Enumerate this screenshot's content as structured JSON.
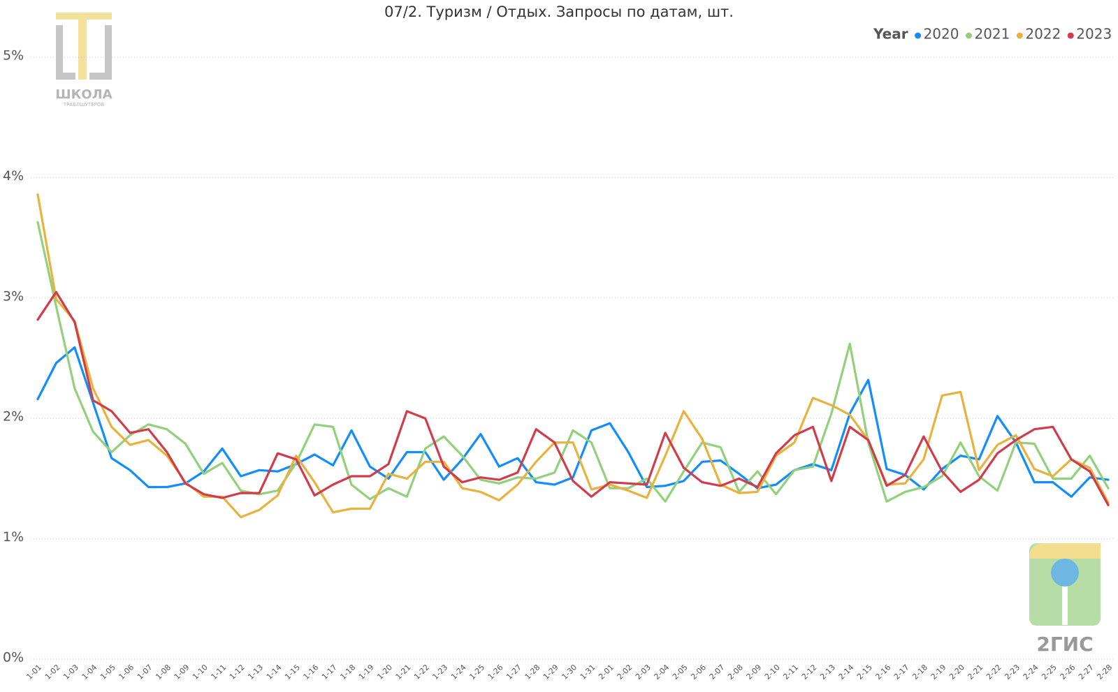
{
  "chart_data": {
    "type": "line",
    "title": "07/2. Туризм / Отдых. Запросы по датам, шт.",
    "legend_title": "Year",
    "legend_position": "top-right",
    "grid": true,
    "categories": [
      "1-01",
      "1-02",
      "1-03",
      "1-04",
      "1-05",
      "1-06",
      "1-07",
      "1-08",
      "1-09",
      "1-10",
      "1-11",
      "1-12",
      "1-13",
      "1-14",
      "1-15",
      "1-16",
      "1-17",
      "1-18",
      "1-19",
      "1-20",
      "1-21",
      "1-22",
      "1-23",
      "1-24",
      "1-25",
      "1-26",
      "1-27",
      "1-28",
      "1-29",
      "1-30",
      "1-31",
      "2-01",
      "2-02",
      "2-03",
      "2-04",
      "2-05",
      "2-06",
      "2-07",
      "2-08",
      "2-09",
      "2-10",
      "2-11",
      "2-12",
      "2-13",
      "2-14",
      "2-15",
      "2-16",
      "2-17",
      "2-18",
      "2-19",
      "2-20",
      "2-21",
      "2-22",
      "2-23",
      "2-24",
      "2-25",
      "2-26",
      "2-27",
      "2-28"
    ],
    "ylim": [
      0,
      5
    ],
    "yticks": [
      {
        "value": 0,
        "label": "0%"
      },
      {
        "value": 1,
        "label": "1%"
      },
      {
        "value": 2,
        "label": "2%"
      },
      {
        "value": 3,
        "label": "3%"
      },
      {
        "value": 4,
        "label": "4%"
      },
      {
        "value": 5,
        "label": "5%"
      }
    ],
    "series": [
      {
        "name": "2020",
        "color": "#118dff",
        "values": [
          2.16,
          2.46,
          2.59,
          2.13,
          1.67,
          1.57,
          1.43,
          1.43,
          1.46,
          1.56,
          1.75,
          1.52,
          1.57,
          1.56,
          1.62,
          1.7,
          1.61,
          1.9,
          1.6,
          1.5,
          1.72,
          1.72,
          1.49,
          1.66,
          1.87,
          1.6,
          1.67,
          1.47,
          1.45,
          1.51,
          1.9,
          1.96,
          1.72,
          1.43,
          1.44,
          1.48,
          1.64,
          1.65,
          1.54,
          1.42,
          1.45,
          1.57,
          1.62,
          1.57,
          2.04,
          2.32,
          1.58,
          1.53,
          1.41,
          1.58,
          1.69,
          1.66,
          2.02,
          1.8,
          1.47,
          1.47,
          1.35,
          1.51,
          1.49
        ]
      },
      {
        "name": "2021",
        "color": "#93d07c",
        "values": [
          3.63,
          2.93,
          2.25,
          1.89,
          1.72,
          1.86,
          1.95,
          1.91,
          1.79,
          1.54,
          1.63,
          1.4,
          1.37,
          1.4,
          1.63,
          1.95,
          1.93,
          1.45,
          1.33,
          1.42,
          1.35,
          1.75,
          1.85,
          1.69,
          1.49,
          1.46,
          1.51,
          1.5,
          1.55,
          1.9,
          1.8,
          1.42,
          1.42,
          1.5,
          1.31,
          1.56,
          1.8,
          1.76,
          1.39,
          1.56,
          1.37,
          1.57,
          1.6,
          2.04,
          2.62,
          1.8,
          1.31,
          1.39,
          1.43,
          1.52,
          1.8,
          1.52,
          1.4,
          1.8,
          1.79,
          1.5,
          1.5,
          1.69,
          1.42
        ]
      },
      {
        "name": "2022",
        "color": "#e8b23c",
        "values": [
          3.86,
          2.99,
          2.81,
          2.25,
          1.93,
          1.78,
          1.82,
          1.69,
          1.47,
          1.35,
          1.35,
          1.18,
          1.24,
          1.36,
          1.69,
          1.47,
          1.22,
          1.25,
          1.25,
          1.54,
          1.5,
          1.64,
          1.64,
          1.42,
          1.39,
          1.32,
          1.45,
          1.64,
          1.8,
          1.8,
          1.41,
          1.45,
          1.4,
          1.34,
          1.69,
          2.06,
          1.83,
          1.45,
          1.38,
          1.39,
          1.69,
          1.8,
          2.17,
          2.11,
          2.03,
          1.82,
          1.45,
          1.46,
          1.66,
          2.19,
          2.22,
          1.57,
          1.78,
          1.86,
          1.58,
          1.52,
          1.66,
          1.59,
          1.3
        ]
      },
      {
        "name": "2023",
        "color": "#d13c4b",
        "values": [
          2.82,
          3.05,
          2.8,
          2.15,
          2.06,
          1.88,
          1.91,
          1.72,
          1.46,
          1.37,
          1.34,
          1.38,
          1.38,
          1.71,
          1.66,
          1.36,
          1.45,
          1.52,
          1.52,
          1.62,
          2.06,
          2.0,
          1.6,
          1.47,
          1.51,
          1.49,
          1.55,
          1.91,
          1.8,
          1.48,
          1.35,
          1.47,
          1.46,
          1.45,
          1.88,
          1.59,
          1.47,
          1.44,
          1.5,
          1.43,
          1.71,
          1.86,
          1.93,
          1.48,
          1.93,
          1.82,
          1.44,
          1.53,
          1.85,
          1.56,
          1.39,
          1.49,
          1.71,
          1.82,
          1.91,
          1.93,
          1.66,
          1.56,
          1.28
        ]
      }
    ]
  },
  "logos": {
    "school": [
      "ШКОЛА",
      "ТРАБЛШУТЕРОВ"
    ],
    "brand": "2ГИС"
  }
}
